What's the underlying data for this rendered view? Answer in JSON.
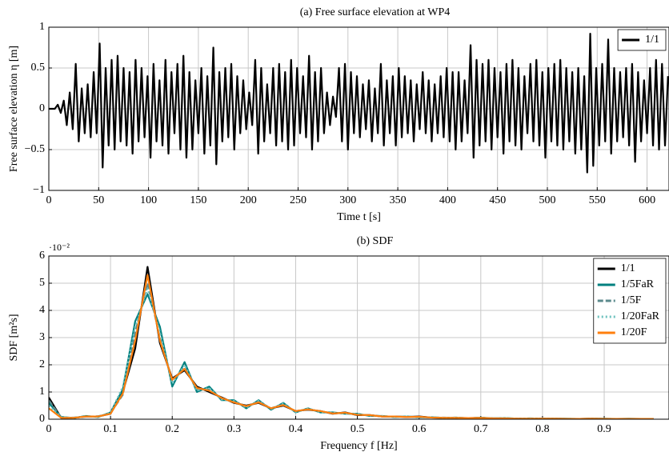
{
  "chart_data": [
    {
      "type": "line",
      "title": "(a) Free surface elevation at WP4",
      "xlabel": "Time t [s]",
      "ylabel": "Free surface elevation η [m]",
      "xlim": [
        0,
        622
      ],
      "ylim": [
        -1,
        1
      ],
      "xticks": [
        0,
        50,
        100,
        150,
        200,
        250,
        300,
        350,
        400,
        450,
        500,
        550,
        600
      ],
      "yticks": [
        {
          "value": -1,
          "label": "−1"
        },
        {
          "value": -0.5,
          "label": "−0.5"
        },
        0,
        0.5,
        1
      ],
      "grid": true,
      "legend": "upper right",
      "x": [
        0,
        3,
        6,
        9,
        12,
        15,
        18,
        21,
        24,
        27,
        30,
        33,
        36,
        39,
        42,
        45,
        48,
        51,
        54,
        57,
        60,
        63,
        66,
        69,
        72,
        75,
        78,
        81,
        84,
        87,
        90,
        93,
        96,
        99,
        102,
        105,
        108,
        111,
        114,
        117,
        120,
        123,
        126,
        129,
        132,
        135,
        138,
        141,
        144,
        147,
        150,
        153,
        156,
        159,
        162,
        165,
        168,
        171,
        174,
        177,
        180,
        183,
        186,
        189,
        192,
        195,
        198,
        201,
        204,
        207,
        210,
        213,
        216,
        219,
        222,
        225,
        228,
        231,
        234,
        237,
        240,
        243,
        246,
        249,
        252,
        255,
        258,
        261,
        264,
        267,
        270,
        273,
        276,
        279,
        282,
        285,
        288,
        291,
        294,
        297,
        300,
        303,
        306,
        309,
        312,
        315,
        318,
        321,
        324,
        327,
        330,
        333,
        336,
        339,
        342,
        345,
        348,
        351,
        354,
        357,
        360,
        363,
        366,
        369,
        372,
        375,
        378,
        381,
        384,
        387,
        390,
        393,
        396,
        399,
        402,
        405,
        408,
        411,
        414,
        417,
        420,
        423,
        426,
        429,
        432,
        435,
        438,
        441,
        444,
        447,
        450,
        453,
        456,
        459,
        462,
        465,
        468,
        471,
        474,
        477,
        480,
        483,
        486,
        489,
        492,
        495,
        498,
        501,
        504,
        507,
        510,
        513,
        516,
        519,
        522,
        525,
        528,
        531,
        534,
        537,
        540,
        543,
        546,
        549,
        552,
        555,
        558,
        561,
        564,
        567,
        570,
        573,
        576,
        579,
        582,
        585,
        588,
        591,
        594,
        597,
        600,
        603,
        606,
        609,
        612,
        615,
        618,
        621
      ],
      "series": [
        {
          "name": "1/1",
          "color": "#000000",
          "linestyle": "solid",
          "values": [
            0,
            0,
            0,
            0.05,
            -0.05,
            0.1,
            -0.2,
            0.2,
            -0.25,
            0.55,
            -0.4,
            0.25,
            -0.3,
            0.3,
            -0.35,
            0.45,
            -0.3,
            0.8,
            -0.72,
            0.5,
            -0.45,
            0.6,
            -0.5,
            0.65,
            -0.4,
            0.5,
            -0.45,
            0.45,
            -0.55,
            0.6,
            -0.4,
            0.5,
            -0.35,
            0.4,
            -0.6,
            0.55,
            -0.4,
            0.35,
            -0.45,
            0.6,
            -0.55,
            0.45,
            -0.3,
            0.55,
            -0.5,
            0.65,
            -0.6,
            0.45,
            -0.5,
            0.35,
            -0.3,
            0.5,
            -0.55,
            0.4,
            -0.45,
            0.75,
            -0.68,
            0.45,
            -0.4,
            0.5,
            -0.35,
            0.55,
            -0.5,
            0.4,
            -0.3,
            0.35,
            -0.25,
            0.2,
            -0.2,
            0.6,
            -0.55,
            0.5,
            -0.4,
            0.3,
            -0.3,
            0.5,
            -0.45,
            0.55,
            -0.4,
            0.45,
            -0.5,
            0.6,
            -0.45,
            0.5,
            -0.3,
            0.4,
            -0.35,
            0.65,
            -0.5,
            0.45,
            -0.4,
            0.5,
            -0.3,
            0.2,
            -0.2,
            0.15,
            -0.1,
            0.5,
            -0.4,
            0.55,
            -0.5,
            0.45,
            -0.3,
            0.4,
            -0.35,
            0.3,
            -0.25,
            0.35,
            -0.4,
            0.25,
            -0.3,
            0.55,
            -0.45,
            0.35,
            -0.3,
            0.4,
            -0.45,
            0.5,
            -0.35,
            0.4,
            -0.3,
            0.35,
            -0.4,
            0.3,
            -0.25,
            0.45,
            -0.3,
            0.35,
            -0.4,
            0.3,
            -0.3,
            0.4,
            -0.35,
            0.5,
            -0.4,
            0.45,
            -0.5,
            0.45,
            -0.4,
            0.35,
            -0.3,
            0.78,
            -0.6,
            0.6,
            -0.45,
            0.55,
            -0.4,
            0.6,
            -0.5,
            0.5,
            -0.35,
            0.45,
            -0.55,
            0.55,
            -0.4,
            0.6,
            -0.45,
            0.5,
            -0.5,
            0.4,
            -0.3,
            0.55,
            -0.4,
            0.6,
            -0.45,
            0.45,
            -0.6,
            0.5,
            -0.4,
            0.55,
            -0.45,
            0.6,
            -0.5,
            0.5,
            -0.4,
            0.45,
            -0.55,
            0.5,
            -0.5,
            0.4,
            -0.78,
            0.92,
            -0.7,
            0.5,
            -0.45,
            0.55,
            -0.4,
            0.85,
            -0.55,
            0.5,
            -0.4,
            0.45,
            -0.35,
            0.5,
            -0.45,
            0.55,
            -0.65,
            0.45,
            -0.4,
            0.35,
            -0.3,
            0.5,
            -0.45,
            0.6,
            -0.5,
            0.55,
            -0.45,
            0.4
          ]
        }
      ]
    },
    {
      "type": "line",
      "title": "(b) SDF",
      "xlabel": "Frequency f [Hz]",
      "ylabel": "SDF [m²s]",
      "axis_multiplier": "·10⁻²",
      "xlim": [
        0,
        1.005
      ],
      "ylim": [
        0,
        6
      ],
      "xticks": [
        0,
        0.1,
        0.2,
        0.3,
        0.4,
        0.5,
        0.6,
        0.7,
        0.8,
        0.9
      ],
      "yticks": [
        0,
        1,
        2,
        3,
        4,
        5,
        6
      ],
      "grid": true,
      "legend": "upper right",
      "x": [
        0,
        0.02,
        0.04,
        0.06,
        0.08,
        0.1,
        0.12,
        0.14,
        0.16,
        0.18,
        0.2,
        0.22,
        0.24,
        0.26,
        0.28,
        0.3,
        0.32,
        0.34,
        0.36,
        0.38,
        0.4,
        0.42,
        0.44,
        0.46,
        0.48,
        0.5,
        0.52,
        0.54,
        0.56,
        0.58,
        0.6,
        0.62,
        0.64,
        0.66,
        0.68,
        0.7,
        0.72,
        0.74,
        0.76,
        0.78,
        0.8,
        0.82,
        0.84,
        0.86,
        0.88,
        0.9,
        0.92,
        0.94,
        0.96,
        0.98
      ],
      "series": [
        {
          "name": "1/1",
          "color": "#000000",
          "linestyle": "solid",
          "values": [
            0.8,
            0.05,
            0.05,
            0.1,
            0.1,
            0.2,
            1.0,
            2.6,
            5.6,
            2.8,
            1.5,
            1.8,
            1.2,
            1.0,
            0.8,
            0.6,
            0.5,
            0.6,
            0.4,
            0.5,
            0.3,
            0.35,
            0.3,
            0.2,
            0.25,
            0.15,
            0.15,
            0.1,
            0.1,
            0.08,
            0.1,
            0.06,
            0.05,
            0.05,
            0.04,
            0.05,
            0.03,
            0.03,
            0.02,
            0.02,
            0.02,
            0.02,
            0.01,
            0.01,
            0.02,
            0.01,
            0.01,
            0.01,
            0.01,
            0.01
          ]
        },
        {
          "name": "1/5FaR",
          "color": "#00807f",
          "linestyle": "solid",
          "values": [
            0.6,
            0.08,
            0.04,
            0.12,
            0.08,
            0.25,
            1.1,
            3.6,
            4.6,
            3.4,
            1.2,
            2.1,
            1.0,
            1.2,
            0.7,
            0.7,
            0.4,
            0.7,
            0.35,
            0.6,
            0.25,
            0.4,
            0.25,
            0.25,
            0.2,
            0.2,
            0.12,
            0.12,
            0.08,
            0.1,
            0.07,
            0.07,
            0.05,
            0.06,
            0.03,
            0.06,
            0.03,
            0.04,
            0.02,
            0.03,
            0.02,
            0.02,
            0.02,
            0.01,
            0.02,
            0.02,
            0.01,
            0.02,
            0.01,
            0.01
          ]
        },
        {
          "name": "1/5F",
          "color": "#5b8a8c",
          "linestyle": "dashed",
          "values": [
            0.7,
            0.06,
            0.06,
            0.09,
            0.11,
            0.22,
            0.9,
            3.2,
            5.0,
            3.0,
            1.4,
            1.9,
            1.1,
            1.1,
            0.75,
            0.65,
            0.45,
            0.65,
            0.4,
            0.55,
            0.28,
            0.38,
            0.28,
            0.22,
            0.22,
            0.17,
            0.14,
            0.11,
            0.09,
            0.09,
            0.08,
            0.06,
            0.06,
            0.05,
            0.04,
            0.05,
            0.03,
            0.03,
            0.02,
            0.02,
            0.02,
            0.02,
            0.01,
            0.01,
            0.02,
            0.01,
            0.01,
            0.01,
            0.01,
            0.01
          ]
        },
        {
          "name": "1/20FaR",
          "color": "#6cc0bd",
          "linestyle": "dotted",
          "values": [
            0.5,
            0.07,
            0.05,
            0.11,
            0.09,
            0.24,
            1.2,
            3.4,
            4.8,
            3.2,
            1.3,
            2.0,
            1.05,
            1.15,
            0.72,
            0.68,
            0.42,
            0.68,
            0.38,
            0.58,
            0.26,
            0.4,
            0.26,
            0.24,
            0.21,
            0.19,
            0.13,
            0.12,
            0.08,
            0.1,
            0.07,
            0.07,
            0.05,
            0.06,
            0.03,
            0.05,
            0.03,
            0.04,
            0.02,
            0.03,
            0.02,
            0.02,
            0.02,
            0.01,
            0.02,
            0.02,
            0.01,
            0.01,
            0.01,
            0.01
          ]
        },
        {
          "name": "1/20F",
          "color": "#ff7f0e",
          "linestyle": "solid",
          "values": [
            0.4,
            0.05,
            0.05,
            0.1,
            0.1,
            0.2,
            0.95,
            2.9,
            5.3,
            2.9,
            1.45,
            1.85,
            1.15,
            1.05,
            0.78,
            0.62,
            0.48,
            0.62,
            0.4,
            0.52,
            0.3,
            0.36,
            0.3,
            0.21,
            0.24,
            0.16,
            0.15,
            0.1,
            0.1,
            0.08,
            0.09,
            0.06,
            0.05,
            0.05,
            0.04,
            0.05,
            0.03,
            0.03,
            0.02,
            0.02,
            0.02,
            0.02,
            0.01,
            0.01,
            0.02,
            0.01,
            0.01,
            0.01,
            0.01,
            0.01
          ]
        }
      ]
    }
  ]
}
